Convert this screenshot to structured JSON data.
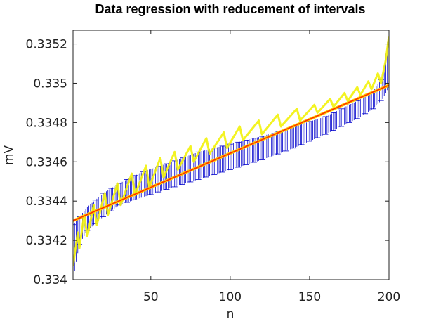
{
  "chart_data": {
    "type": "line",
    "title": "Data regression with reducement of intervals",
    "xlabel": "n",
    "ylabel": "mV",
    "xlim": [
      1,
      200
    ],
    "ylim": [
      0.334,
      0.33527
    ],
    "xticks": [
      50,
      100,
      150,
      200
    ],
    "xtick_labels": [
      "50",
      "100",
      "150",
      "200"
    ],
    "yticks": [
      0.334,
      0.3342,
      0.3344,
      0.3346,
      0.3348,
      0.335,
      0.3352
    ],
    "ytick_labels": [
      "0.334",
      "0.3342",
      "0.3344",
      "0.3346",
      "0.3348",
      "0.335",
      "0.3352"
    ],
    "grid": false,
    "colors": {
      "intervals": "#0000cc",
      "data": "#f2f20a",
      "regression": "#ff2a00",
      "regression_outline": "#ffcc00"
    },
    "series": [
      {
        "kind": "interval-band",
        "lower": {
          "x": [
            1,
            5,
            10,
            20,
            30,
            45,
            60,
            80,
            100,
            120,
            140,
            160,
            180,
            190,
            196,
            200
          ],
          "y": [
            0.334,
            0.33418,
            0.33425,
            0.33432,
            0.33438,
            0.33442,
            0.33446,
            0.33451,
            0.33456,
            0.33461,
            0.33467,
            0.33474,
            0.33482,
            0.33487,
            0.33492,
            0.33498
          ]
        },
        "upper": {
          "x": [
            1,
            5,
            10,
            20,
            30,
            45,
            60,
            80,
            100,
            120,
            140,
            160,
            180,
            190,
            196,
            200
          ],
          "y": [
            0.33428,
            0.33432,
            0.33437,
            0.33444,
            0.33449,
            0.33455,
            0.33459,
            0.33465,
            0.33469,
            0.33473,
            0.33478,
            0.33483,
            0.33491,
            0.33496,
            0.33503,
            0.33527
          ]
        }
      },
      {
        "kind": "data-sawtooth",
        "x": [
          1,
          4,
          5,
          8,
          10,
          14,
          16,
          21,
          23,
          29,
          31,
          38,
          40,
          47,
          49,
          56,
          58,
          65,
          67,
          75,
          77,
          85,
          87,
          96,
          98,
          106,
          108,
          118,
          120,
          130,
          132,
          142,
          144,
          153,
          155,
          163,
          165,
          172,
          174,
          180,
          182,
          187,
          189,
          193,
          195,
          198,
          200
        ],
        "y": [
          0.33407,
          0.33424,
          0.33416,
          0.33433,
          0.33422,
          0.33438,
          0.33428,
          0.33444,
          0.33433,
          0.33449,
          0.33438,
          0.33454,
          0.33443,
          0.33458,
          0.33447,
          0.33462,
          0.33452,
          0.33465,
          0.33456,
          0.33468,
          0.3346,
          0.33472,
          0.33464,
          0.33475,
          0.33467,
          0.33478,
          0.33471,
          0.33481,
          0.33474,
          0.33484,
          0.33478,
          0.33487,
          0.33481,
          0.33489,
          0.33485,
          0.33492,
          0.33488,
          0.33495,
          0.33491,
          0.33498,
          0.33494,
          0.33501,
          0.33497,
          0.33505,
          0.335,
          0.33512,
          0.33524
        ]
      },
      {
        "kind": "regression-line",
        "x": [
          1,
          200
        ],
        "y": [
          0.3343,
          0.33499
        ]
      }
    ]
  }
}
